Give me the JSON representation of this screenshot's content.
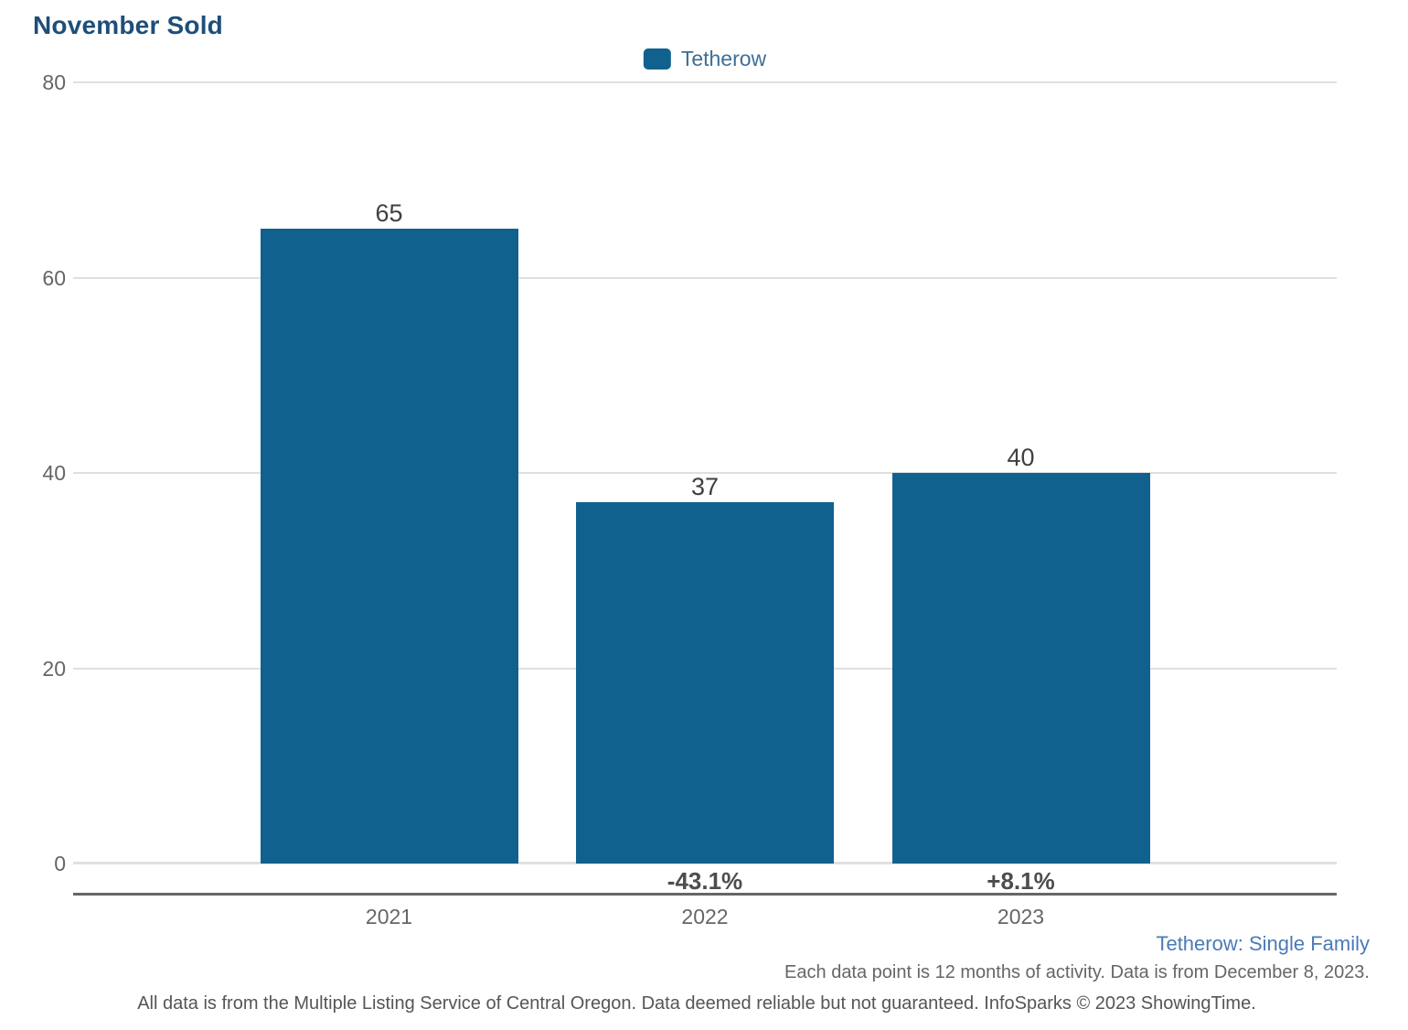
{
  "page": {
    "title": "November Sold"
  },
  "legend": {
    "label": "Tetherow"
  },
  "chart_data": {
    "type": "bar",
    "title": "November Sold",
    "categories": [
      "2021",
      "2022",
      "2023"
    ],
    "series": [
      {
        "name": "Tetherow",
        "values": [
          65,
          37,
          40
        ]
      }
    ],
    "value_labels": [
      "65",
      "37",
      "40"
    ],
    "pct_change_labels": [
      "",
      "-43.1%",
      "+8.1%"
    ],
    "xlabel": "",
    "ylabel": "",
    "ylim": [
      0,
      80
    ],
    "yticks": [
      0,
      20,
      40,
      60,
      80
    ],
    "grid": true,
    "legend_position": "top-center",
    "bar_color": "#11618f"
  },
  "footer": {
    "series_context": "Tetherow: Single Family",
    "data_note": "Each data point is 12 months of activity. Data is from December 8, 2023.",
    "attribution": "All data is from the Multiple Listing Service of Central Oregon. Data deemed reliable but not guaranteed. InfoSparks © 2023 ShowingTime."
  },
  "colors": {
    "bar": "#11618f",
    "title_text": "#1f4e79",
    "legend_text": "#3f6e96",
    "footer_link_text": "#4a7ab7",
    "axis_text": "#666666",
    "value_label_text": "#404040",
    "pct_label_text": "#4d4d4d",
    "gridline": "#e0e0e0",
    "axis_line": "#666666",
    "attribution_text": "#555555"
  }
}
